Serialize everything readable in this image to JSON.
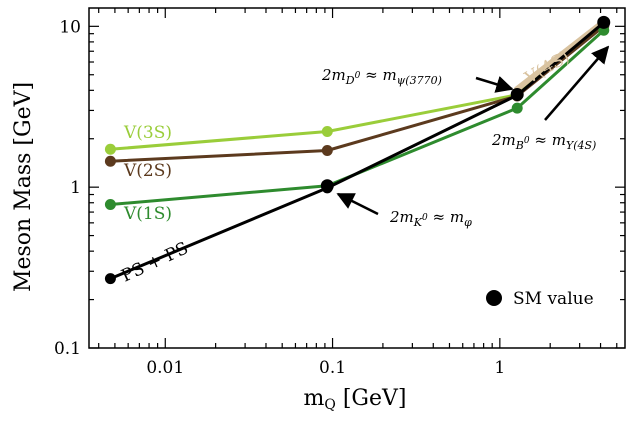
{
  "chart_data": {
    "type": "line",
    "xlabel": "m_Q [GeV]",
    "ylabel": "Meson Mass [GeV]",
    "xscale": "log",
    "yscale": "log",
    "xlim": [
      0.0035,
      5.6
    ],
    "ylim": [
      0.1,
      13
    ],
    "x_ticks": [
      {
        "value": 0.01,
        "label": "0.01"
      },
      {
        "value": 0.1,
        "label": "0.1"
      },
      {
        "value": 1,
        "label": "1"
      }
    ],
    "y_ticks": [
      {
        "value": 0.1,
        "label": "0.1"
      },
      {
        "value": 1,
        "label": "1"
      },
      {
        "value": 10,
        "label": "10"
      }
    ],
    "series": [
      {
        "name": "V(3S)",
        "color": "#9acd3a",
        "x": [
          0.0047,
          0.093,
          1.27,
          4.18
        ],
        "y": [
          1.72,
          2.22,
          3.75,
          10.35
        ]
      },
      {
        "name": "V(2S)",
        "color": "#5c3a1e",
        "x": [
          0.0047,
          0.093,
          1.27,
          4.18
        ],
        "y": [
          1.45,
          1.69,
          3.69,
          10.02
        ]
      },
      {
        "name": "V(1S)",
        "color": "#2e8b2e",
        "x": [
          0.0047,
          0.093,
          1.27,
          4.18
        ],
        "y": [
          0.78,
          1.02,
          3.1,
          9.46
        ]
      },
      {
        "name": "V(4S)",
        "color": "#d9c3a0",
        "x": [
          1.27,
          4.18
        ],
        "y": [
          4.04,
          10.58
        ]
      },
      {
        "name": "PS + PS",
        "color": "#000000",
        "x": [
          0.0047,
          0.093,
          1.27,
          4.18
        ],
        "y": [
          0.27,
          0.99,
          3.73,
          10.56
        ]
      }
    ],
    "sm_points": [
      {
        "x": 0.093,
        "y": 1.02
      },
      {
        "x": 1.27,
        "y": 3.77
      },
      {
        "x": 4.18,
        "y": 10.58
      }
    ],
    "annotations": [
      {
        "id": "kphi",
        "text": "2m_{K^0} ≈ m_φ",
        "color": "#000000"
      },
      {
        "id": "dpsi",
        "text": "2m_{D^0} ≈ m_{ψ(3770)}",
        "color": "#000000"
      },
      {
        "id": "bups",
        "text": "2m_{B^0} ≈ m_{Υ(4S)}",
        "color": "#000000"
      }
    ],
    "legend": {
      "label": "SM value",
      "position": "bottom-right"
    },
    "grid": false
  }
}
